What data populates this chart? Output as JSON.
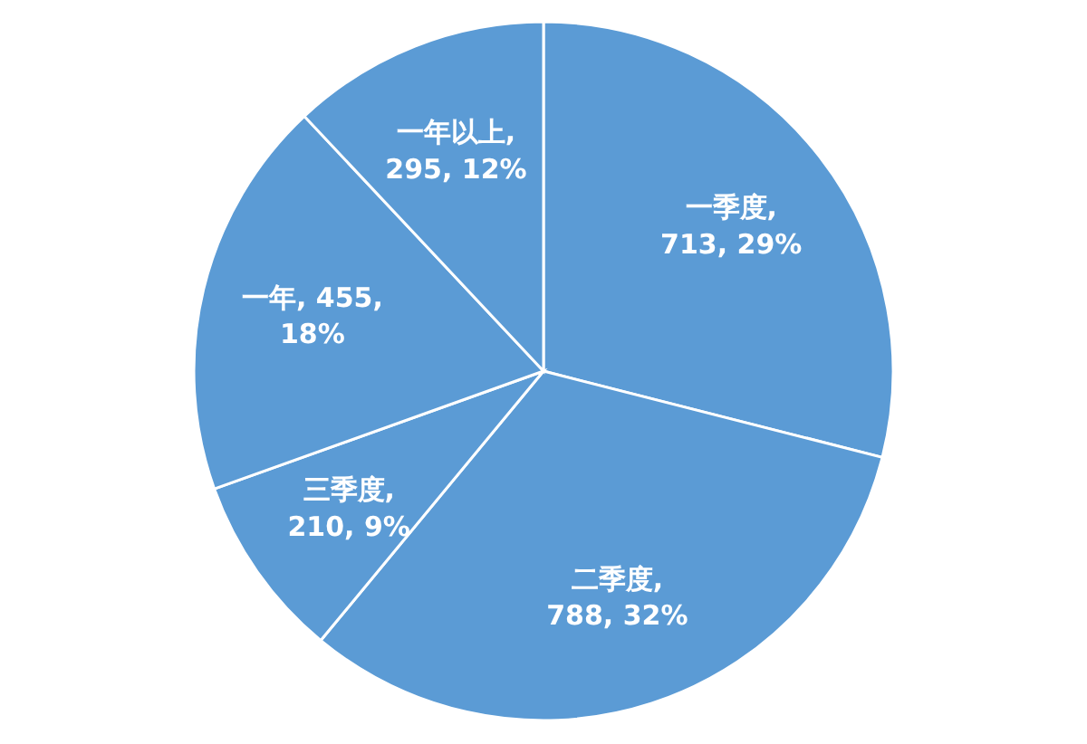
{
  "chart_data": {
    "type": "pie",
    "categories": [
      "一季度",
      "二季度",
      "三季度",
      "一年",
      "一年以上"
    ],
    "values": [
      713,
      788,
      210,
      455,
      295
    ],
    "colors": [
      "#5b9bd5",
      "#5b9bd5",
      "#5b9bd5",
      "#5b9bd5",
      "#5b9bd5"
    ],
    "value_labels": [
      ", 713, 29%",
      ", 788, 32%",
      ", 210, 9%",
      ", 455, 18%",
      ", 295, 12%"
    ]
  }
}
